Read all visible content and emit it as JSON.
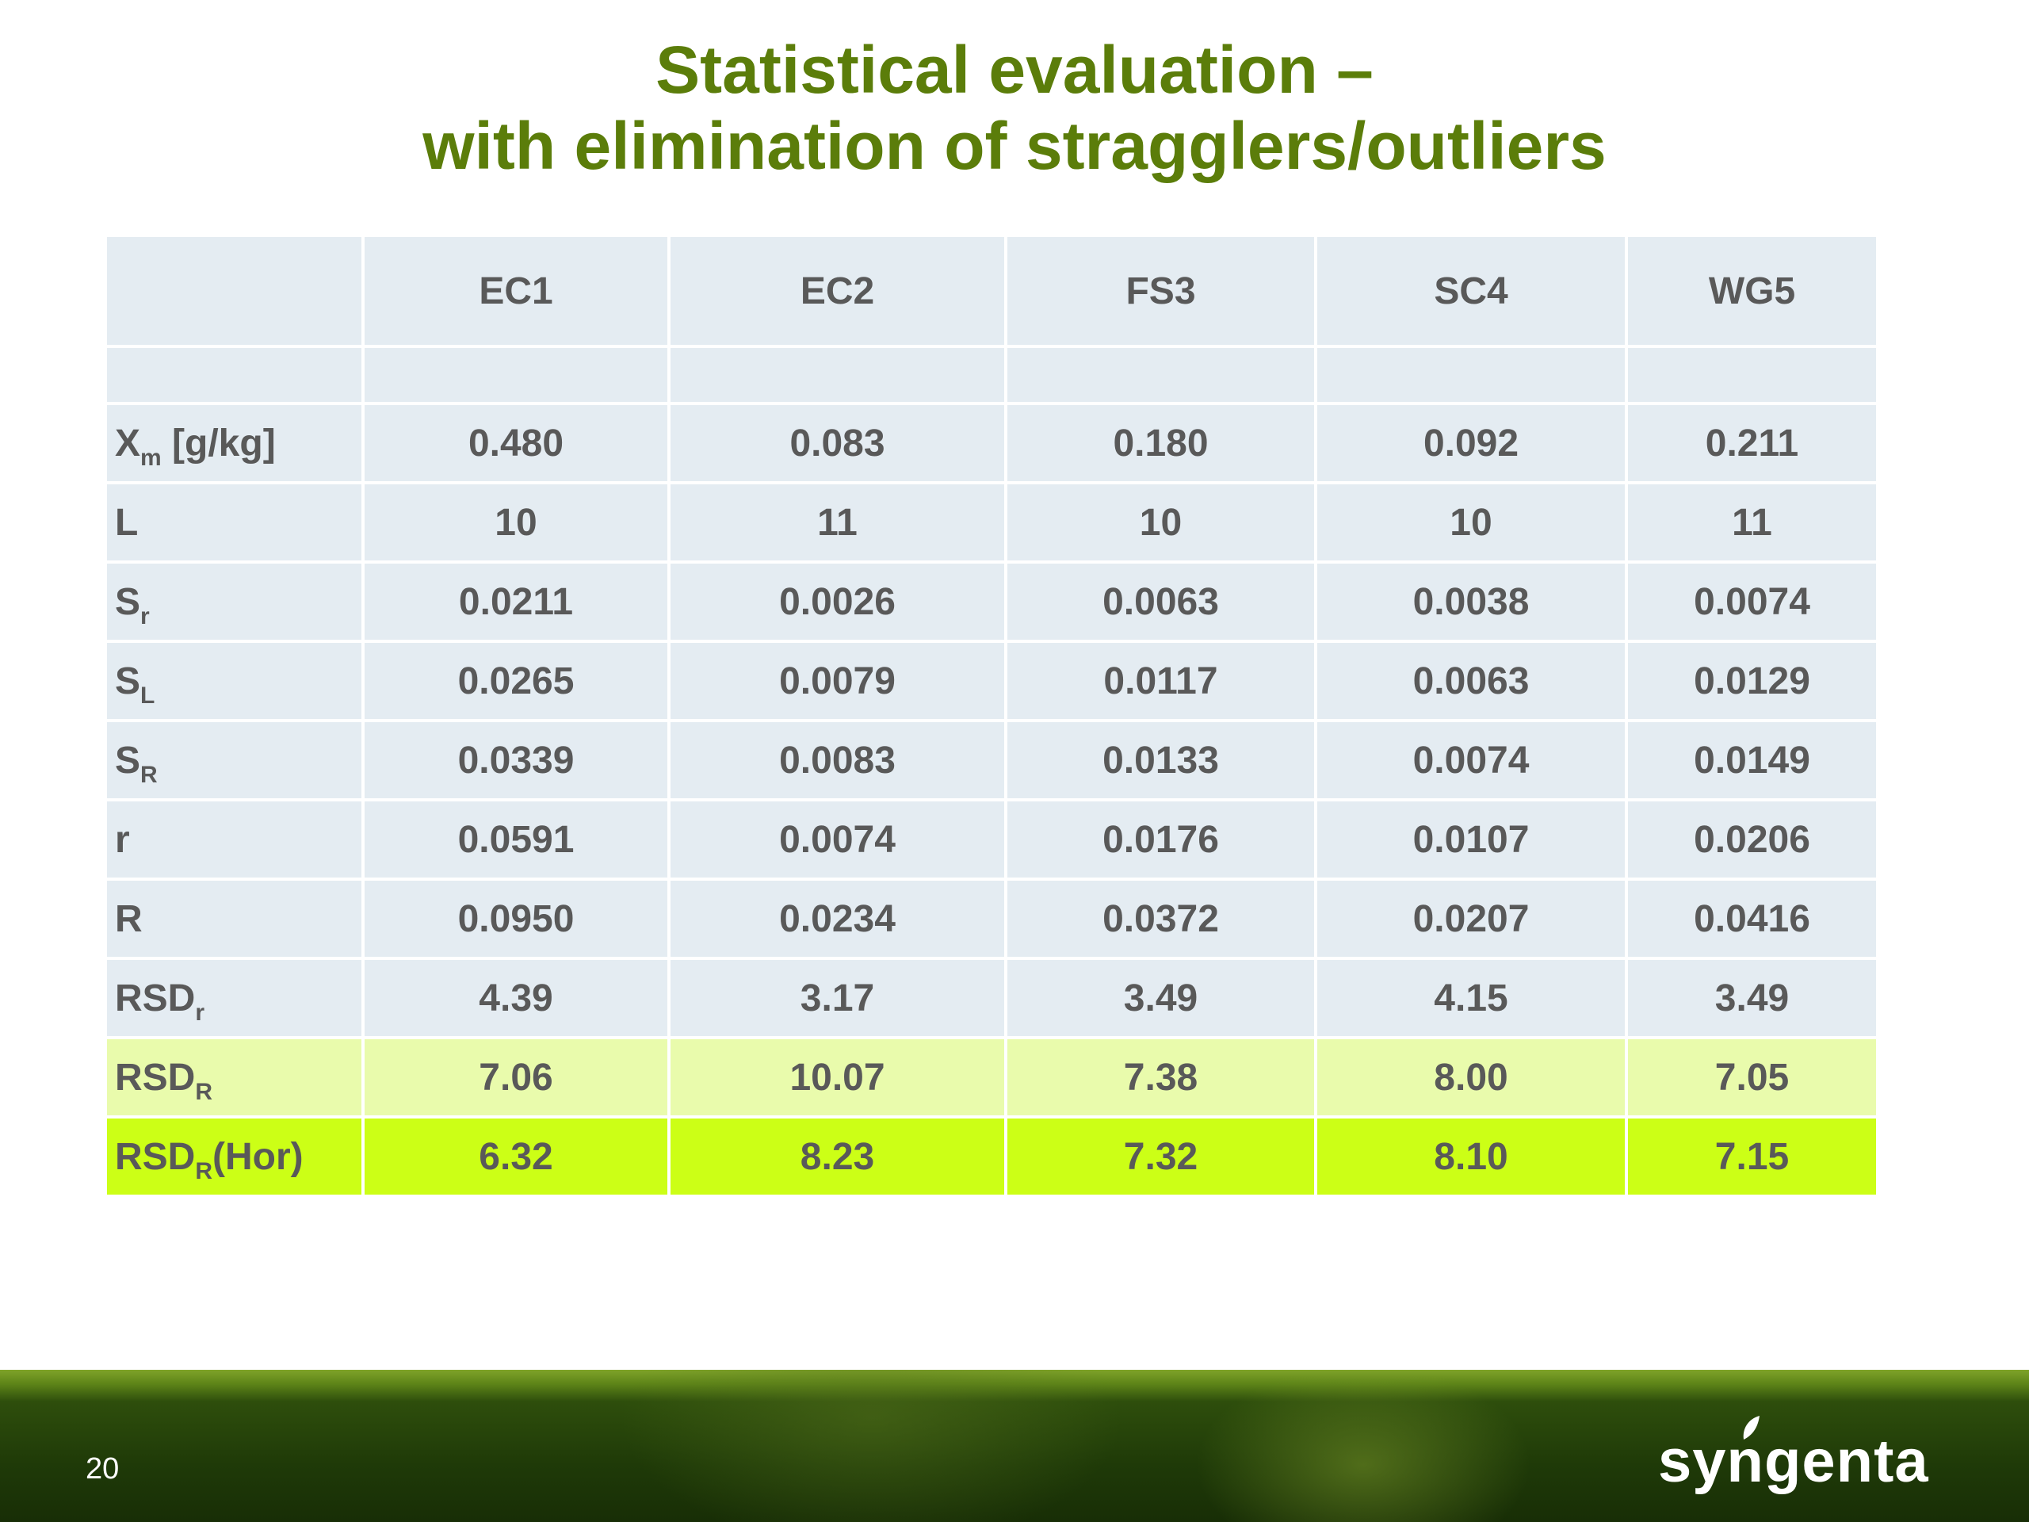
{
  "slide": {
    "title_line1": "Statistical evaluation –",
    "title_line2": "with elimination of stragglers/outliers",
    "page_number": "20",
    "logo_text": "syngenta"
  },
  "table": {
    "columns": [
      "EC1",
      "EC2",
      "FS3",
      "SC4",
      "WG5"
    ],
    "rows": [
      {
        "label": "X",
        "sub": "m",
        "suffix": " [g/kg]",
        "values": [
          "0.480",
          "0.083",
          "0.180",
          "0.092",
          "0.211"
        ]
      },
      {
        "label": "L",
        "sub": "",
        "suffix": "",
        "values": [
          "10",
          "11",
          "10",
          "10",
          "11"
        ]
      },
      {
        "label": "S",
        "sub": "r",
        "suffix": "",
        "values": [
          "0.0211",
          "0.0026",
          "0.0063",
          "0.0038",
          "0.0074"
        ]
      },
      {
        "label": "S",
        "sub": "L",
        "suffix": "",
        "values": [
          "0.0265",
          "0.0079",
          "0.0117",
          "0.0063",
          "0.0129"
        ]
      },
      {
        "label": "S",
        "sub": "R",
        "suffix": "",
        "values": [
          "0.0339",
          "0.0083",
          "0.0133",
          "0.0074",
          "0.0149"
        ]
      },
      {
        "label": "r",
        "sub": "",
        "suffix": "",
        "values": [
          "0.0591",
          "0.0074",
          "0.0176",
          "0.0107",
          "0.0206"
        ]
      },
      {
        "label": "R",
        "sub": "",
        "suffix": "",
        "values": [
          "0.0950",
          "0.0234",
          "0.0372",
          "0.0207",
          "0.0416"
        ]
      },
      {
        "label": "RSD",
        "sub": "r",
        "suffix": "",
        "values": [
          "4.39",
          "3.17",
          "3.49",
          "4.15",
          "3.49"
        ]
      },
      {
        "label": "RSD",
        "sub": "R",
        "suffix": "",
        "values": [
          "7.06",
          "10.07",
          "7.38",
          "8.00",
          "7.05"
        ]
      },
      {
        "label": "RSD",
        "sub": "R",
        "suffix": "(Hor)",
        "values": [
          "6.32",
          "8.23",
          "7.32",
          "8.10",
          "7.15"
        ]
      }
    ]
  },
  "colors": {
    "title": "#5b7d0a",
    "table_cell": "#e4ecf2",
    "highlight_light": "#e9fbac",
    "highlight_strong": "#ccff16"
  }
}
